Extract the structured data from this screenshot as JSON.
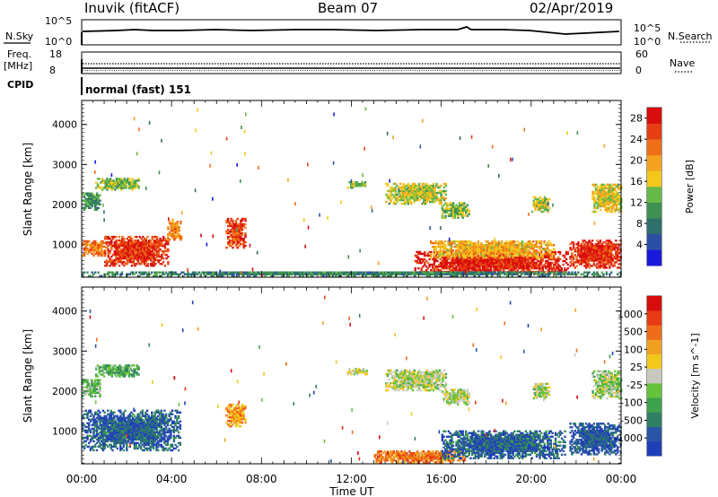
{
  "header": {
    "station": "Inuvik (fitACF)",
    "beam": "Beam 07",
    "date": "02/Apr/2019"
  },
  "top_panels": {
    "nsky_label": "N.Sky",
    "nsearch_label": "N.Search",
    "noise_ticks": [
      "10^5",
      "10^0"
    ],
    "freq_label": "Freq.",
    "freq_unit": "[MHz]",
    "freq_ticks": [
      "18",
      "8"
    ],
    "nave_label": "Nave",
    "nave_ticks": [
      "60",
      "0"
    ],
    "cpid_label": "CPID",
    "cpid_value": "normal (fast) 151"
  },
  "chart_data": [
    {
      "type": "heatmap",
      "title": "",
      "xlabel": "Time UT",
      "ylabel": "Slant Range [km]",
      "x_ticks": [
        "00:00",
        "04:00",
        "08:00",
        "12:00",
        "16:00",
        "20:00",
        "00:00"
      ],
      "xlim": [
        0,
        24
      ],
      "ylim": [
        180,
        4600
      ],
      "y_ticks": [
        1000,
        2000,
        3000,
        4000
      ],
      "colorbar": {
        "label": "Power [dB]",
        "ticks": [
          4,
          8,
          12,
          16,
          20,
          24,
          28
        ],
        "range": [
          0,
          30
        ],
        "colors": [
          "#1a1adf",
          "#2c4fa6",
          "#2f6f6c",
          "#3e9152",
          "#66b948",
          "#f2c81d",
          "#f5a21e",
          "#ee7018",
          "#e63f14",
          "#d90d0d"
        ]
      },
      "patches": [
        {
          "t": [
            0.0,
            0.8
          ],
          "r": [
            1850,
            2300
          ],
          "level": 0.35
        },
        {
          "t": [
            0.6,
            2.5
          ],
          "r": [
            2350,
            2650
          ],
          "level": 0.45
        },
        {
          "t": [
            0.0,
            1.0
          ],
          "r": [
            700,
            1100
          ],
          "level": 0.72
        },
        {
          "t": [
            1.0,
            3.8
          ],
          "r": [
            450,
            1200
          ],
          "level": 0.88
        },
        {
          "t": [
            3.8,
            4.4
          ],
          "r": [
            1100,
            1600
          ],
          "level": 0.7
        },
        {
          "t": [
            6.4,
            7.3
          ],
          "r": [
            900,
            1650
          ],
          "level": 0.82
        },
        {
          "t": [
            11.8,
            12.7
          ],
          "r": [
            2400,
            2550
          ],
          "level": 0.45
        },
        {
          "t": [
            13.5,
            16.2
          ],
          "r": [
            2000,
            2500
          ],
          "level": 0.5
        },
        {
          "t": [
            16.0,
            17.2
          ],
          "r": [
            1650,
            2050
          ],
          "level": 0.45
        },
        {
          "t": [
            20.0,
            20.8
          ],
          "r": [
            1800,
            2200
          ],
          "level": 0.5
        },
        {
          "t": [
            22.7,
            24.0
          ],
          "r": [
            1800,
            2500
          ],
          "level": 0.55
        },
        {
          "t": [
            14.8,
            21.6
          ],
          "r": [
            250,
            800
          ],
          "level": 0.92
        },
        {
          "t": [
            15.5,
            21.0
          ],
          "r": [
            650,
            1100
          ],
          "level": 0.62
        },
        {
          "t": [
            21.7,
            24.0
          ],
          "r": [
            400,
            1100
          ],
          "level": 0.9
        },
        {
          "t": [
            0.0,
            24.0
          ],
          "r": [
            190,
            320
          ],
          "level": 0.3
        }
      ]
    },
    {
      "type": "heatmap",
      "title": "",
      "xlabel": "Time UT",
      "ylabel": "Slant Range [km]",
      "x_ticks": [
        "00:00",
        "04:00",
        "08:00",
        "12:00",
        "16:00",
        "20:00",
        "00:00"
      ],
      "xlim": [
        0,
        24
      ],
      "ylim": [
        180,
        4600
      ],
      "y_ticks": [
        1000,
        2000,
        3000,
        4000
      ],
      "colorbar": {
        "label": "Velocity [m s^-1]",
        "ticks": [
          "1000",
          "500",
          "100",
          "25",
          "-25",
          "-100",
          "-500",
          "-1000"
        ],
        "range": [
          -1000,
          1000
        ],
        "colors": [
          "#1f3fb8",
          "#2a55a6",
          "#2f7f63",
          "#3ea24f",
          "#66c23a",
          "#c8c8c0",
          "#f2c81d",
          "#f0a020",
          "#ee6d18",
          "#e83a14",
          "#d80c0c"
        ]
      },
      "patches": [
        {
          "t": [
            0.0,
            0.8
          ],
          "r": [
            1850,
            2300
          ],
          "level": 0.4
        },
        {
          "t": [
            0.6,
            2.5
          ],
          "r": [
            2350,
            2650
          ],
          "level": 0.35
        },
        {
          "t": [
            0.0,
            4.4
          ],
          "r": [
            500,
            1500
          ],
          "level": 0.15
        },
        {
          "t": [
            6.4,
            7.3
          ],
          "r": [
            1100,
            1650
          ],
          "level": 0.7
        },
        {
          "t": [
            11.8,
            12.7
          ],
          "r": [
            2400,
            2550
          ],
          "level": 0.5
        },
        {
          "t": [
            13.5,
            16.2
          ],
          "r": [
            2000,
            2500
          ],
          "level": 0.48
        },
        {
          "t": [
            16.0,
            17.2
          ],
          "r": [
            1650,
            2050
          ],
          "level": 0.48
        },
        {
          "t": [
            20.0,
            20.8
          ],
          "r": [
            1800,
            2200
          ],
          "level": 0.48
        },
        {
          "t": [
            22.7,
            24.0
          ],
          "r": [
            1800,
            2500
          ],
          "level": 0.45
        },
        {
          "t": [
            13.0,
            17.0
          ],
          "r": [
            200,
            500
          ],
          "level": 0.75
        },
        {
          "t": [
            16.0,
            21.5
          ],
          "r": [
            300,
            1000
          ],
          "level": 0.15
        },
        {
          "t": [
            21.7,
            24.0
          ],
          "r": [
            400,
            1200
          ],
          "level": 0.12
        }
      ]
    }
  ]
}
